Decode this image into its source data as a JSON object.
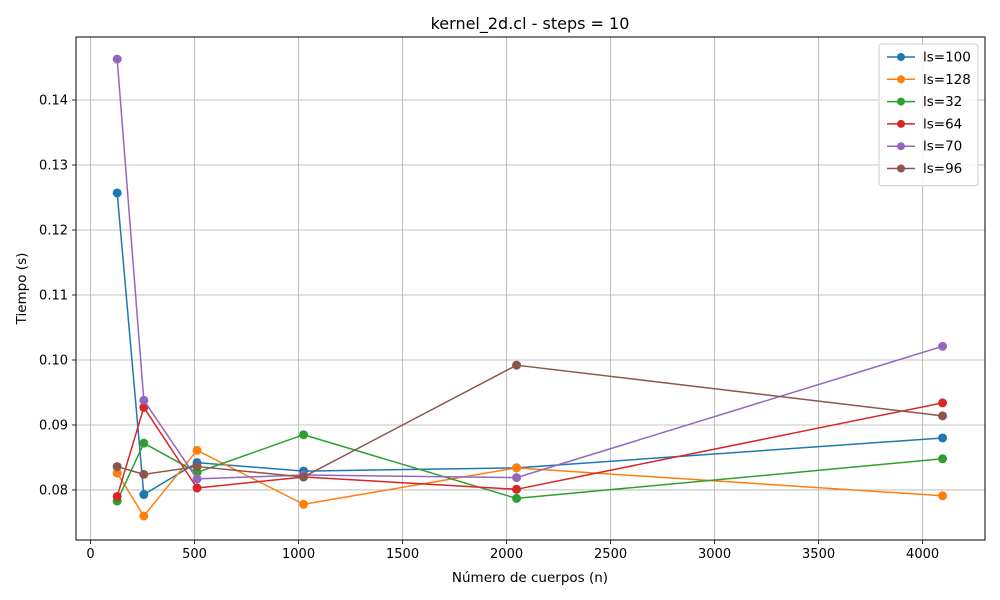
{
  "chart_data": {
    "type": "line",
    "title": "kernel_2d.cl - steps = 10",
    "xlabel": "Número de cuerpos (n)",
    "ylabel": "Tiempo (s)",
    "xlim": [
      -70,
      4300
    ],
    "ylim": [
      0.0723,
      0.1497
    ],
    "xticks": [
      0,
      500,
      1000,
      1500,
      2000,
      2500,
      3000,
      3500,
      4000
    ],
    "xtick_labels": [
      "0",
      "500",
      "1000",
      "1500",
      "2000",
      "2500",
      "3000",
      "3500",
      "4000"
    ],
    "yticks": [
      0.08,
      0.09,
      0.1,
      0.11,
      0.12,
      0.13,
      0.14
    ],
    "ytick_labels": [
      "0.08",
      "0.09",
      "0.10",
      "0.11",
      "0.12",
      "0.13",
      "0.14"
    ],
    "grid": true,
    "legend_position": "top-right",
    "x": [
      128,
      256,
      512,
      1024,
      2048,
      4096
    ],
    "series": [
      {
        "name": "ls=100",
        "color": "#1f77b4",
        "values": [
          0.1257,
          0.0793,
          0.0842,
          0.0829,
          0.0834,
          0.088
        ]
      },
      {
        "name": "ls=128",
        "color": "#ff7f0e",
        "values": [
          0.0826,
          0.076,
          0.0861,
          0.0778,
          0.0834,
          0.0791
        ]
      },
      {
        "name": "ls=32",
        "color": "#2ca02c",
        "values": [
          0.0783,
          0.0872,
          0.0827,
          0.0885,
          0.0787,
          0.0848
        ]
      },
      {
        "name": "ls=64",
        "color": "#d62728",
        "values": [
          0.079,
          0.0927,
          0.0803,
          0.082,
          0.0801,
          0.0934
        ]
      },
      {
        "name": "ls=70",
        "color": "#9467bd",
        "values": [
          0.1463,
          0.0938,
          0.0817,
          0.0823,
          0.0819,
          0.1021
        ]
      },
      {
        "name": "ls=96",
        "color": "#8c564b",
        "values": [
          0.0836,
          0.0824,
          0.0836,
          0.082,
          0.0992,
          0.0914
        ]
      }
    ]
  }
}
